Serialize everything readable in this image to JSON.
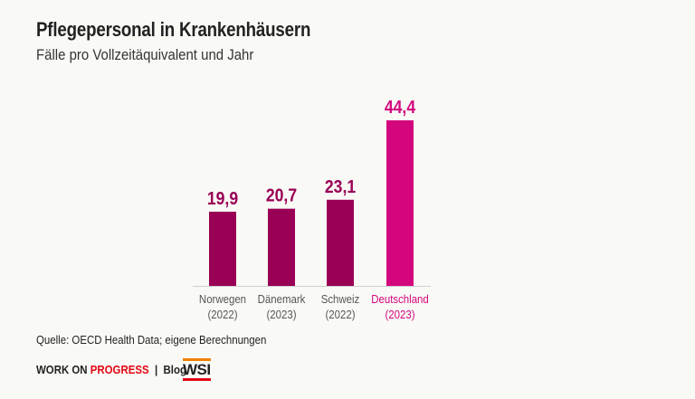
{
  "title": "Pflegepersonal in Krankenhäusern",
  "subtitle": "Fälle pro Vollzeitäquivalent und Jahr",
  "source": "Quelle: OECD Health Data; eigene Berechnungen",
  "footer": {
    "brand_part1": "WORK ON",
    "brand_part2": "PROGRESS",
    "separator": "|",
    "blog": "Blog",
    "logo": "WSI"
  },
  "colors": {
    "default": "#990055",
    "highlight": "#d4067e"
  },
  "chart_data": {
    "type": "bar",
    "categories": [
      "Norwegen",
      "Dänemark",
      "Schweiz",
      "Deutschland"
    ],
    "years": [
      "(2022)",
      "(2023)",
      "(2022)",
      "(2023)"
    ],
    "values": [
      19.9,
      20.7,
      23.1,
      44.4
    ],
    "labels": [
      "19,9",
      "20,7",
      "23,1",
      "44,4"
    ],
    "highlight": [
      false,
      false,
      false,
      true
    ],
    "ylim": [
      0,
      44.4
    ]
  }
}
